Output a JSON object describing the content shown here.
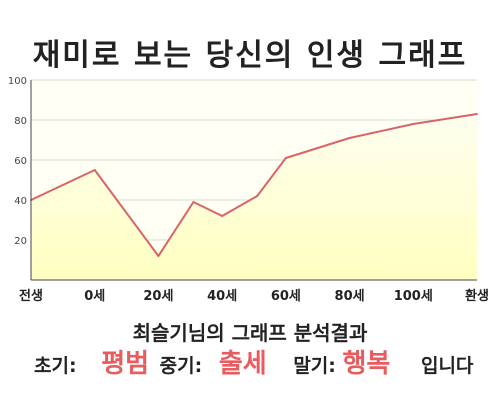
{
  "title": "재미로 보는 당신의 인생 그래프",
  "chart_data": {
    "type": "area",
    "x_labels": [
      "전생",
      "0세",
      "20세",
      "40세",
      "60세",
      "80세",
      "100세",
      "환생"
    ],
    "x": [
      "전생",
      "0세",
      "20세",
      "31세",
      "40세",
      "51세",
      "60세",
      "70세",
      "80세",
      "100세",
      "환생"
    ],
    "values": [
      40,
      55,
      12,
      39,
      32,
      42,
      61,
      66,
      71,
      78,
      83
    ],
    "y_ticks": [
      20,
      40,
      60,
      80,
      100
    ],
    "ylim": [
      0,
      100
    ],
    "grid": true,
    "colors": {
      "line": "#d96466",
      "fill": "#ffffcc",
      "grid": "#d9d9d9"
    }
  },
  "result": {
    "heading": "최슬기님의 그래프 분석결과",
    "early_label": "초기:",
    "early_value": "평범",
    "mid_label": "중기:",
    "mid_value": "출세",
    "late_label": "말기:",
    "late_value": "행복",
    "ending": "입니다"
  }
}
